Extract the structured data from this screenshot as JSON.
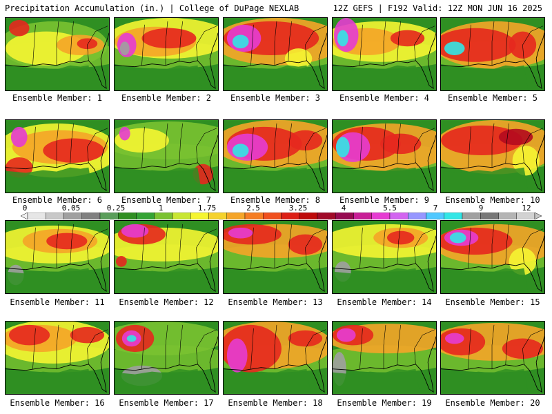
{
  "header": {
    "title": "Precipitation Accumulation (in.) | College of DuPage NEXLAB",
    "valid": "12Z GEFS | F192 Valid: 12Z MON JUN 16 2025"
  },
  "members": [
    {
      "label": "Ensemble Member: 1"
    },
    {
      "label": "Ensemble Member: 2"
    },
    {
      "label": "Ensemble Member: 3"
    },
    {
      "label": "Ensemble Member: 4"
    },
    {
      "label": "Ensemble Member: 5"
    },
    {
      "label": "Ensemble Member: 6"
    },
    {
      "label": "Ensemble Member: 7"
    },
    {
      "label": "Ensemble Member: 8"
    },
    {
      "label": "Ensemble Member: 9"
    },
    {
      "label": "Ensemble Member: 10"
    },
    {
      "label": "Ensemble Member: 11"
    },
    {
      "label": "Ensemble Member: 12"
    },
    {
      "label": "Ensemble Member: 13"
    },
    {
      "label": "Ensemble Member: 14"
    },
    {
      "label": "Ensemble Member: 15"
    },
    {
      "label": "Ensemble Member: 16"
    },
    {
      "label": "Ensemble Member: 17"
    },
    {
      "label": "Ensemble Member: 18"
    },
    {
      "label": "Ensemble Member: 19"
    },
    {
      "label": "Ensemble Member: 20"
    }
  ],
  "colorbar": {
    "labels": [
      "0",
      "0.05",
      "0.25",
      "1",
      "1.75",
      "2.5",
      "3.25",
      "4",
      "5.5",
      "7",
      "9",
      "12"
    ],
    "colors": [
      "#e6e6e6",
      "#c8c8c8",
      "#a0a0a0",
      "#808080",
      "#5a9e5a",
      "#2f8f22",
      "#34a334",
      "#7ac231",
      "#c8e632",
      "#f5f532",
      "#f5d22d",
      "#f5a528",
      "#f57d23",
      "#f0501e",
      "#dc1e14",
      "#be0a0a",
      "#a00a28",
      "#960a50",
      "#c81e96",
      "#e63cd2",
      "#d264f0",
      "#9696ff",
      "#50c8ff",
      "#32e6e6",
      "#a0a0a0",
      "#787878",
      "#b4b4b4",
      "#d2d2d2"
    ]
  },
  "map_palette": {
    "green": "#2f8f22",
    "lightgreen": "#7ac231",
    "yellow": "#f5f532",
    "orange": "#f5a528",
    "red": "#e6281e",
    "darkred": "#b40a1e",
    "magenta": "#e63cd2",
    "cyan": "#32e6e6",
    "gray": "#a0a0a0"
  }
}
